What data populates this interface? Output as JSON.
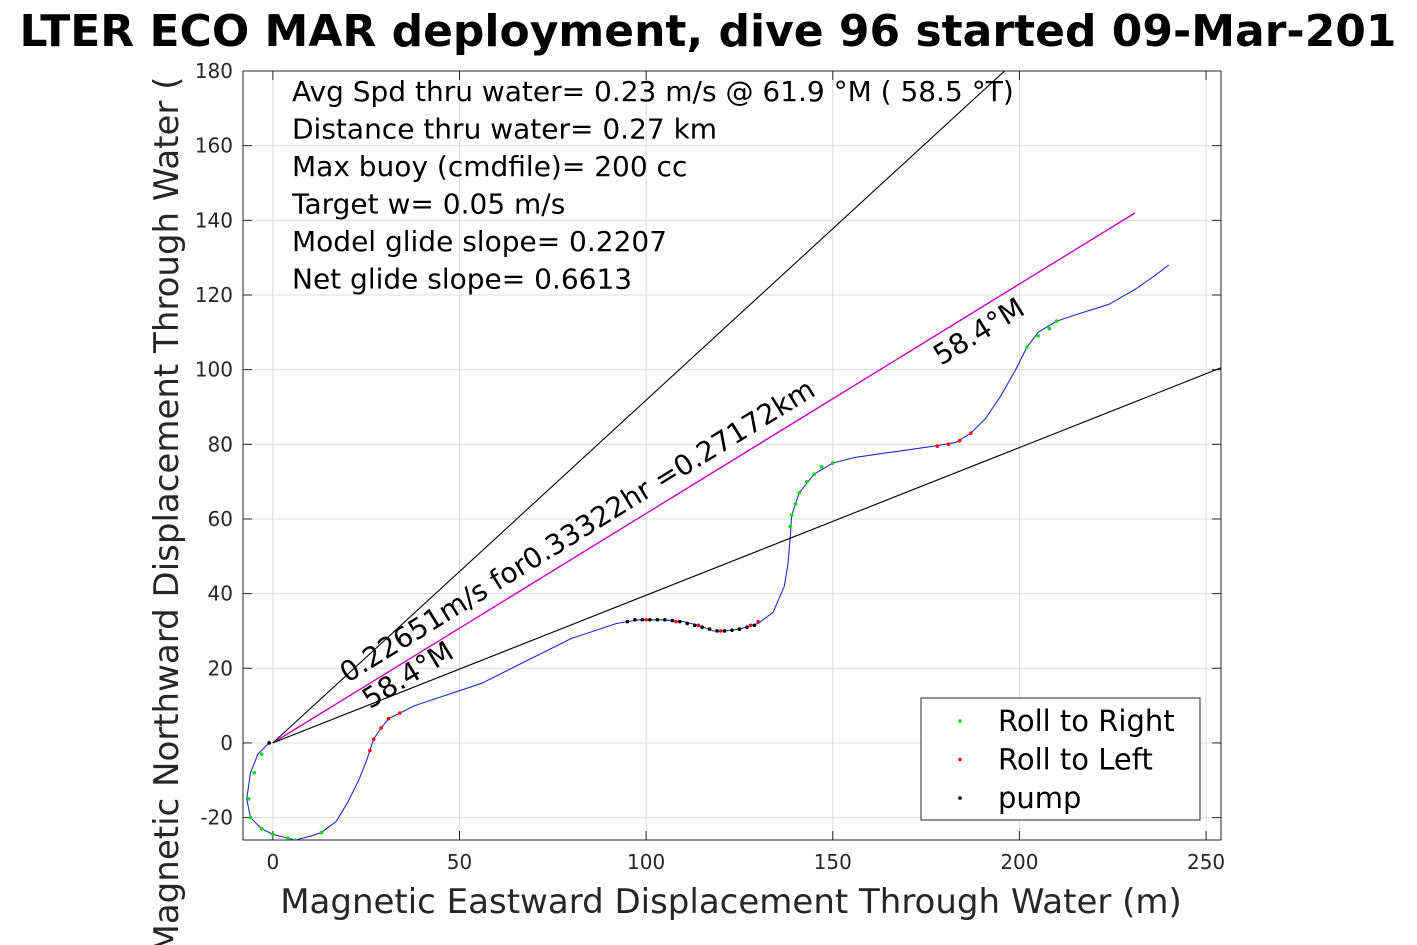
{
  "chart_data": {
    "type": "line",
    "title": "LTER ECO MAR deployment, dive 96 started 09-Mar-201",
    "xlabel": "Magnetic Eastward Displacement Through Water (m)",
    "ylabel": "Magnetic Northward Displacement Through Water (",
    "xlim": [
      -8,
      254
    ],
    "ylim": [
      -26,
      180
    ],
    "xticks": [
      0,
      50,
      100,
      150,
      200,
      250
    ],
    "yticks": [
      -20,
      0,
      20,
      40,
      60,
      80,
      100,
      120,
      140,
      160,
      180
    ],
    "grid": true,
    "legend_position": "bottom-right",
    "legend": [
      {
        "label": "Roll to Right",
        "color": "#00dd00"
      },
      {
        "label": "Roll to Left",
        "color": "#ff0000"
      },
      {
        "label": "pump",
        "color": "#000000"
      }
    ],
    "info_text": [
      "Avg Spd thru water=  0.23 m/s @  61.9 °M ( 58.5 °T)",
      "Distance thru water=  0.27 km",
      "Max buoy (cmdfile)= 200 cc",
      "Target w= 0.05 m/s",
      "Model glide slope= 0.2207",
      "Net glide slope= 0.6613"
    ],
    "annotations": [
      {
        "text": "0.22651m/s for0.33322hr =0.27172km",
        "x": 20,
        "y": 16,
        "angle_deg": 31.6
      },
      {
        "text": "58.4°M",
        "x": 26,
        "y": 9,
        "angle_deg": 31.6
      },
      {
        "text": "58.4°M",
        "x": 179,
        "y": 101,
        "angle_deg": 31.6
      }
    ],
    "series": [
      {
        "role": "track",
        "color": "#1a2ed6",
        "points": [
          [
            -1,
            0
          ],
          [
            -4,
            -3
          ],
          [
            -6,
            -8
          ],
          [
            -7,
            -15
          ],
          [
            -6,
            -20
          ],
          [
            -3,
            -23
          ],
          [
            0,
            -24.5
          ],
          [
            4,
            -25.5
          ],
          [
            6,
            -26
          ],
          [
            10,
            -25
          ],
          [
            13,
            -24
          ],
          [
            17,
            -21
          ],
          [
            20,
            -16
          ],
          [
            23,
            -10
          ],
          [
            25,
            -5
          ],
          [
            26,
            -2
          ],
          [
            27,
            1
          ],
          [
            29,
            4
          ],
          [
            31,
            6.5
          ],
          [
            34,
            8
          ],
          [
            38,
            10
          ],
          [
            44,
            12
          ],
          [
            50,
            14
          ],
          [
            56,
            16
          ],
          [
            62,
            19
          ],
          [
            68,
            22
          ],
          [
            74,
            25
          ],
          [
            80,
            28
          ],
          [
            86,
            30
          ],
          [
            92,
            32
          ],
          [
            98,
            33
          ],
          [
            104,
            33
          ],
          [
            110,
            32.5
          ],
          [
            114,
            31.5
          ],
          [
            118,
            30
          ],
          [
            121,
            30
          ],
          [
            125,
            30.5
          ],
          [
            130,
            32
          ],
          [
            134,
            35
          ],
          [
            137,
            42
          ],
          [
            138,
            48
          ],
          [
            138.6,
            55
          ],
          [
            139,
            61
          ],
          [
            141,
            67
          ],
          [
            145,
            72
          ],
          [
            150,
            75
          ],
          [
            156,
            76.5
          ],
          [
            163,
            77.5
          ],
          [
            170,
            78.5
          ],
          [
            177,
            79.5
          ],
          [
            183,
            80.5
          ],
          [
            187,
            83
          ],
          [
            191,
            87
          ],
          [
            195,
            93
          ],
          [
            199,
            100
          ],
          [
            202,
            106
          ],
          [
            205,
            110
          ],
          [
            210,
            113
          ],
          [
            216,
            115
          ],
          [
            224,
            117.5
          ],
          [
            231,
            121.5
          ],
          [
            236,
            125
          ],
          [
            240,
            128
          ]
        ]
      },
      {
        "role": "mean-heading",
        "color": "#cc00cc",
        "points": [
          [
            0,
            0
          ],
          [
            231,
            142
          ]
        ]
      },
      {
        "role": "bound-upper",
        "color": "#000000",
        "points": [
          [
            0,
            0
          ],
          [
            196,
            180
          ]
        ]
      },
      {
        "role": "bound-lower",
        "color": "#000000",
        "points": [
          [
            0,
            0
          ],
          [
            254,
            100.5
          ]
        ]
      }
    ],
    "markers": {
      "roll_right": {
        "color": "#00dd00",
        "points": [
          [
            -1,
            0
          ],
          [
            -3,
            -3
          ],
          [
            -5,
            -8
          ],
          [
            -6.5,
            -15
          ],
          [
            -6,
            -20
          ],
          [
            -3,
            -23
          ],
          [
            0,
            -24.5
          ],
          [
            4,
            -25.5
          ],
          [
            6,
            -26
          ],
          [
            13,
            -24
          ],
          [
            138.6,
            58
          ],
          [
            139,
            61
          ],
          [
            140,
            64
          ],
          [
            141,
            67
          ],
          [
            143,
            70
          ],
          [
            145,
            72
          ],
          [
            147,
            74
          ],
          [
            150,
            75
          ],
          [
            202,
            106
          ],
          [
            205,
            109
          ],
          [
            208,
            111
          ],
          [
            210,
            113
          ]
        ]
      },
      "roll_left": {
        "color": "#ff0000",
        "points": [
          [
            26,
            -2
          ],
          [
            27,
            1
          ],
          [
            29,
            4
          ],
          [
            31,
            6.5
          ],
          [
            34,
            8
          ],
          [
            95,
            32.5
          ],
          [
            100,
            33
          ],
          [
            108,
            32.5
          ],
          [
            114,
            31.5
          ],
          [
            120,
            30
          ],
          [
            125,
            30.5
          ],
          [
            128,
            31.5
          ],
          [
            130,
            32.5
          ],
          [
            178,
            79.5
          ],
          [
            181,
            80
          ],
          [
            184,
            81
          ],
          [
            187,
            83
          ]
        ]
      },
      "pump": {
        "color": "#000000",
        "points": [
          [
            95,
            32.5
          ],
          [
            97,
            33
          ],
          [
            99,
            33
          ],
          [
            101,
            33
          ],
          [
            103,
            33
          ],
          [
            105,
            33
          ],
          [
            107,
            32.8
          ],
          [
            109,
            32.5
          ],
          [
            111,
            32
          ],
          [
            113,
            31.5
          ],
          [
            115,
            31
          ],
          [
            117,
            30.5
          ],
          [
            119,
            30
          ],
          [
            121,
            30
          ],
          [
            123,
            30.2
          ],
          [
            125,
            30.5
          ],
          [
            127,
            31
          ],
          [
            129,
            31.5
          ],
          [
            -1,
            0
          ]
        ]
      }
    }
  }
}
